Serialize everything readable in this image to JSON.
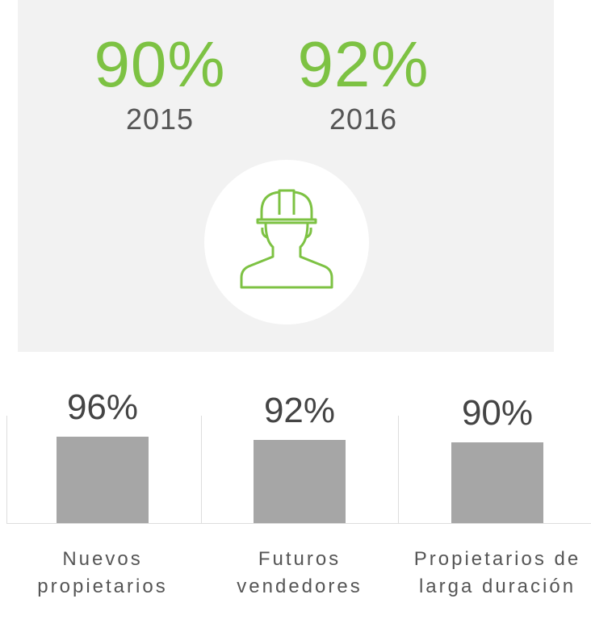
{
  "highlights": [
    {
      "percent": "90%",
      "year": "2015"
    },
    {
      "percent": "92%",
      "year": "2016"
    }
  ],
  "chart_data": {
    "type": "bar",
    "categories": [
      "Nuevos propietarios",
      "Futuros vendedores",
      "Propietarios de larga duración"
    ],
    "values": [
      96,
      92,
      90
    ],
    "value_labels": [
      "96%",
      "92%",
      "90%"
    ],
    "color": "#a6a6a6"
  }
}
